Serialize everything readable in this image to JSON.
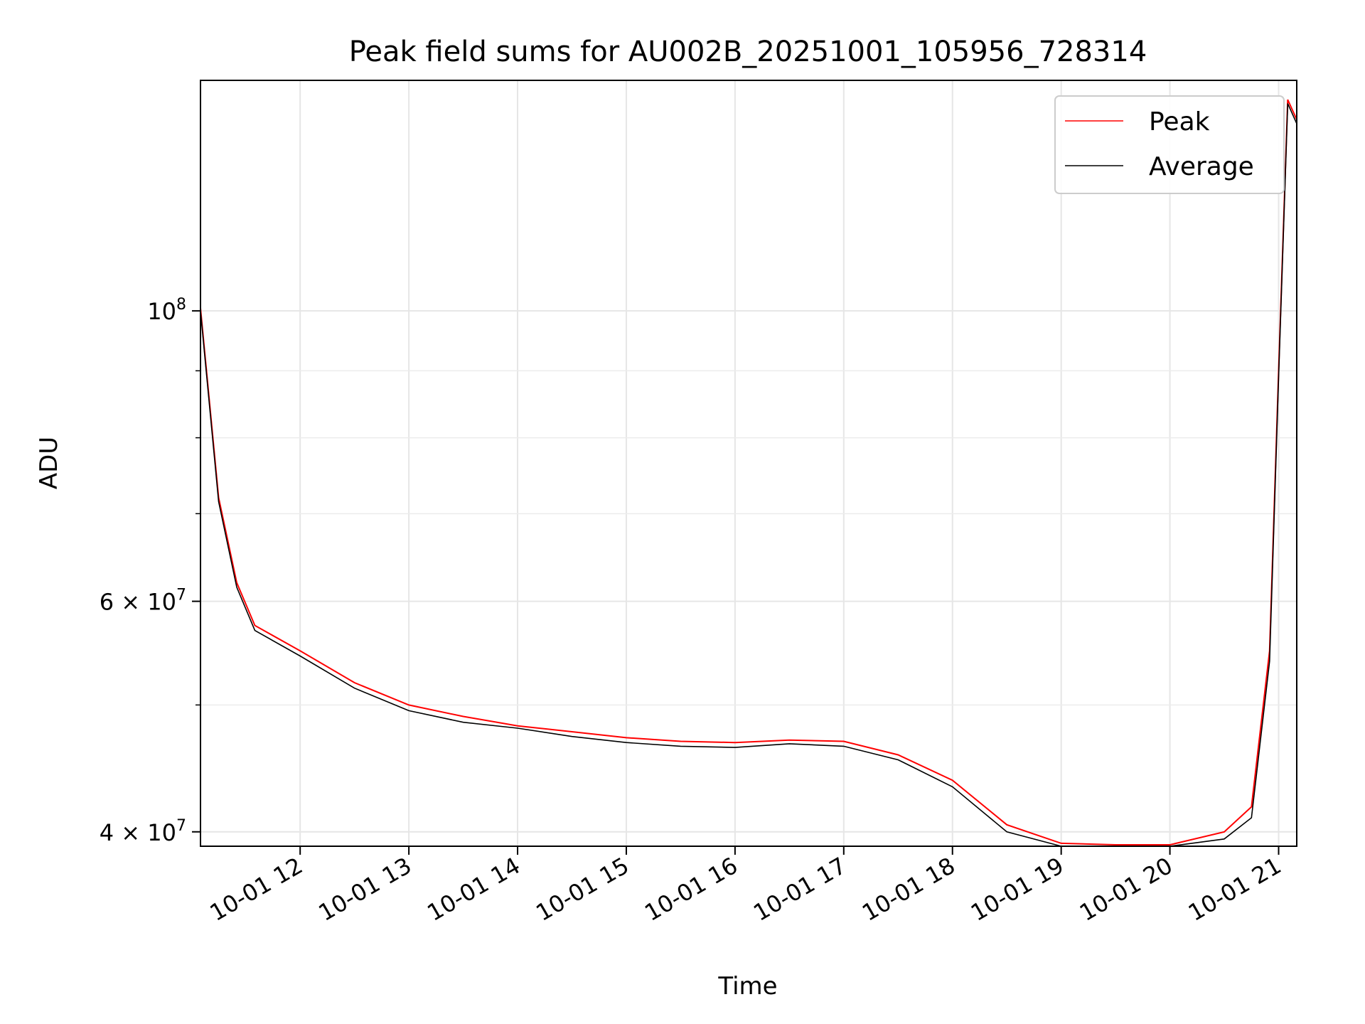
{
  "chart_data": {
    "type": "line",
    "title": "Peak field sums for AU002B_20251001_105956_728314",
    "xlabel": "Time",
    "ylabel": "ADU",
    "y_scale": "log",
    "xlim": [
      "10-01 11:05",
      "10-01 21:10"
    ],
    "ylim": [
      39000000,
      150000000
    ],
    "grid": true,
    "legend_position": "top-right",
    "x_ticks": [
      "10-01 12",
      "10-01 13",
      "10-01 14",
      "10-01 15",
      "10-01 16",
      "10-01 17",
      "10-01 18",
      "10-01 19",
      "10-01 20",
      "10-01 21"
    ],
    "y_ticks": [
      {
        "value": 40000000,
        "mantissa": "4",
        "times": "×",
        "base": "10",
        "exp": "7"
      },
      {
        "value": 60000000,
        "mantissa": "6",
        "times": "×",
        "base": "10",
        "exp": "7"
      },
      {
        "value": 100000000,
        "mantissa": "",
        "times": "",
        "base": "10",
        "exp": "8"
      }
    ],
    "y_minor_ticks": [
      50000000,
      70000000,
      80000000,
      90000000
    ],
    "x": [
      "10-01 11:05",
      "10-01 11:15",
      "10-01 11:25",
      "10-01 11:35",
      "10-01 12:00",
      "10-01 12:30",
      "10-01 13:00",
      "10-01 13:30",
      "10-01 14:00",
      "10-01 14:30",
      "10-01 15:00",
      "10-01 15:30",
      "10-01 16:00",
      "10-01 16:30",
      "10-01 17:00",
      "10-01 17:30",
      "10-01 18:00",
      "10-01 18:30",
      "10-01 19:00",
      "10-01 19:30",
      "10-01 20:00",
      "10-01 20:30",
      "10-01 20:45",
      "10-01 20:55",
      "10-01 21:00",
      "10-01 21:05",
      "10-01 21:10"
    ],
    "series": [
      {
        "name": "Peak",
        "color": "#ff0000",
        "values": [
          100500000,
          72000000,
          62000000,
          57500000,
          55000000,
          52000000,
          50000000,
          49000000,
          48200000,
          47700000,
          47200000,
          46900000,
          46800000,
          47000000,
          46900000,
          45800000,
          43800000,
          40500000,
          39200000,
          39100000,
          39100000,
          40000000,
          41800000,
          55000000,
          90000000,
          145000000,
          140000000
        ]
      },
      {
        "name": "Average",
        "color": "#000000",
        "values": [
          100000000,
          71500000,
          61500000,
          57000000,
          54500000,
          51500000,
          49500000,
          48500000,
          48000000,
          47300000,
          46800000,
          46500000,
          46400000,
          46700000,
          46500000,
          45400000,
          43300000,
          40000000,
          38800000,
          38700000,
          38800000,
          39500000,
          41000000,
          54000000,
          89000000,
          144000000,
          139000000
        ]
      }
    ]
  }
}
